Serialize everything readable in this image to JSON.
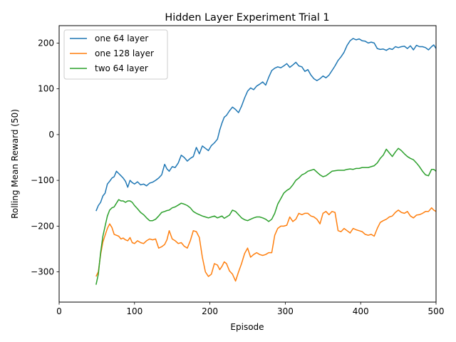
{
  "chart_data": {
    "type": "line",
    "title": "Hidden Layer Experiment Trial 1",
    "xlabel": "Episode",
    "ylabel": "Rolling Mean Reward (50)",
    "xlim": [
      0,
      500
    ],
    "ylim": [
      -366,
      238
    ],
    "xticks": [
      0,
      100,
      200,
      300,
      400,
      500
    ],
    "yticks": [
      -300,
      -200,
      -100,
      0,
      100,
      200
    ],
    "xtick_labels": [
      "0",
      "100",
      "200",
      "300",
      "400",
      "500"
    ],
    "ytick_labels": [
      "−300",
      "−200",
      "−100",
      "0",
      "100",
      "200"
    ],
    "grid": false,
    "legend_position": "upper-left",
    "series": [
      {
        "name": "one 64 layer",
        "color": "#1f77b4",
        "x": [
          49,
          52,
          55,
          58,
          61,
          64,
          67,
          70,
          73,
          76,
          79,
          82,
          85,
          88,
          91,
          94,
          97,
          100,
          104,
          108,
          112,
          116,
          120,
          124,
          128,
          132,
          136,
          140,
          143,
          146,
          150,
          154,
          158,
          162,
          166,
          170,
          174,
          178,
          182,
          186,
          190,
          194,
          198,
          202,
          206,
          210,
          213,
          216,
          219,
          222,
          226,
          230,
          234,
          238,
          242,
          246,
          250,
          254,
          258,
          262,
          266,
          270,
          274,
          278,
          282,
          286,
          290,
          294,
          298,
          302,
          306,
          310,
          314,
          318,
          322,
          326,
          330,
          334,
          338,
          342,
          346,
          350,
          354,
          358,
          362,
          366,
          370,
          374,
          378,
          382,
          386,
          390,
          394,
          398,
          402,
          406,
          410,
          414,
          418,
          422,
          426,
          430,
          434,
          438,
          442,
          446,
          450,
          454,
          458,
          462,
          466,
          470,
          474,
          478,
          482,
          486,
          490,
          494,
          497,
          500
        ],
        "y": [
          -167,
          -155,
          -148,
          -134,
          -128,
          -108,
          -102,
          -95,
          -92,
          -80,
          -85,
          -90,
          -95,
          -102,
          -115,
          -100,
          -105,
          -108,
          -103,
          -110,
          -108,
          -112,
          -106,
          -104,
          -100,
          -95,
          -88,
          -65,
          -75,
          -80,
          -70,
          -72,
          -62,
          -45,
          -50,
          -58,
          -52,
          -48,
          -28,
          -42,
          -25,
          -30,
          -35,
          -24,
          -18,
          -10,
          10,
          25,
          38,
          42,
          52,
          60,
          55,
          48,
          62,
          80,
          95,
          102,
          98,
          106,
          110,
          115,
          108,
          125,
          140,
          145,
          148,
          146,
          150,
          155,
          147,
          152,
          158,
          150,
          148,
          138,
          142,
          130,
          122,
          118,
          122,
          128,
          124,
          130,
          140,
          150,
          162,
          170,
          180,
          195,
          205,
          210,
          207,
          209,
          205,
          204,
          200,
          202,
          200,
          188,
          186,
          187,
          184,
          188,
          186,
          192,
          190,
          192,
          193,
          188,
          194,
          185,
          195,
          192,
          192,
          190,
          185,
          192,
          196,
          188
        ]
      },
      {
        "name": "one 128 layer",
        "color": "#ff7f0e",
        "x": [
          49,
          52,
          55,
          58,
          61,
          64,
          67,
          70,
          73,
          76,
          79,
          82,
          85,
          88,
          91,
          94,
          97,
          100,
          104,
          108,
          112,
          116,
          120,
          124,
          128,
          132,
          136,
          140,
          143,
          146,
          150,
          154,
          158,
          162,
          166,
          170,
          174,
          178,
          182,
          186,
          190,
          194,
          198,
          202,
          206,
          210,
          213,
          216,
          219,
          222,
          226,
          230,
          234,
          238,
          242,
          246,
          250,
          254,
          258,
          262,
          266,
          270,
          274,
          278,
          282,
          286,
          290,
          294,
          298,
          302,
          306,
          310,
          314,
          318,
          322,
          326,
          330,
          334,
          338,
          342,
          346,
          350,
          354,
          358,
          362,
          366,
          370,
          374,
          378,
          382,
          386,
          390,
          394,
          398,
          402,
          406,
          410,
          414,
          418,
          422,
          426,
          430,
          434,
          438,
          442,
          446,
          450,
          454,
          458,
          462,
          466,
          470,
          474,
          478,
          482,
          486,
          490,
          494,
          497,
          500
        ],
        "y": [
          -310,
          -300,
          -262,
          -235,
          -220,
          -205,
          -195,
          -203,
          -218,
          -220,
          -222,
          -228,
          -226,
          -230,
          -232,
          -225,
          -236,
          -238,
          -232,
          -236,
          -238,
          -232,
          -228,
          -230,
          -228,
          -248,
          -245,
          -240,
          -230,
          -210,
          -228,
          -232,
          -238,
          -236,
          -244,
          -248,
          -232,
          -210,
          -212,
          -225,
          -268,
          -300,
          -310,
          -305,
          -282,
          -285,
          -295,
          -288,
          -278,
          -282,
          -298,
          -305,
          -320,
          -300,
          -282,
          -260,
          -248,
          -268,
          -262,
          -258,
          -262,
          -264,
          -262,
          -258,
          -258,
          -220,
          -205,
          -200,
          -200,
          -198,
          -180,
          -190,
          -185,
          -172,
          -175,
          -172,
          -172,
          -178,
          -180,
          -185,
          -195,
          -172,
          -168,
          -175,
          -168,
          -170,
          -210,
          -212,
          -205,
          -210,
          -215,
          -205,
          -208,
          -210,
          -212,
          -218,
          -220,
          -218,
          -222,
          -205,
          -192,
          -188,
          -185,
          -180,
          -178,
          -170,
          -165,
          -170,
          -172,
          -168,
          -178,
          -182,
          -176,
          -175,
          -172,
          -168,
          -168,
          -160,
          -165,
          -168
        ]
      },
      {
        "name": "two 64 layer",
        "color": "#2ca02c",
        "x": [
          49,
          52,
          55,
          58,
          61,
          64,
          67,
          70,
          73,
          76,
          79,
          82,
          85,
          88,
          91,
          94,
          97,
          100,
          104,
          108,
          112,
          116,
          120,
          124,
          128,
          132,
          136,
          140,
          143,
          146,
          150,
          154,
          158,
          162,
          166,
          170,
          174,
          178,
          182,
          186,
          190,
          194,
          198,
          202,
          206,
          210,
          213,
          216,
          219,
          222,
          226,
          230,
          234,
          238,
          242,
          246,
          250,
          254,
          258,
          262,
          266,
          270,
          274,
          278,
          282,
          286,
          290,
          294,
          298,
          302,
          306,
          310,
          314,
          318,
          322,
          326,
          330,
          334,
          338,
          342,
          346,
          350,
          354,
          358,
          362,
          366,
          370,
          374,
          378,
          382,
          386,
          390,
          394,
          398,
          402,
          406,
          410,
          414,
          418,
          422,
          426,
          430,
          434,
          438,
          442,
          446,
          450,
          454,
          458,
          462,
          466,
          470,
          474,
          478,
          482,
          486,
          490,
          494,
          497,
          500
        ],
        "y": [
          -328,
          -305,
          -258,
          -222,
          -200,
          -178,
          -165,
          -160,
          -158,
          -150,
          -142,
          -145,
          -145,
          -148,
          -145,
          -145,
          -148,
          -155,
          -162,
          -170,
          -175,
          -182,
          -188,
          -188,
          -185,
          -178,
          -170,
          -168,
          -166,
          -165,
          -160,
          -158,
          -154,
          -150,
          -152,
          -155,
          -160,
          -168,
          -172,
          -175,
          -178,
          -180,
          -182,
          -180,
          -178,
          -182,
          -180,
          -178,
          -183,
          -180,
          -176,
          -165,
          -168,
          -175,
          -182,
          -186,
          -188,
          -185,
          -182,
          -180,
          -180,
          -182,
          -185,
          -190,
          -185,
          -172,
          -152,
          -140,
          -128,
          -122,
          -118,
          -110,
          -100,
          -95,
          -88,
          -85,
          -80,
          -78,
          -76,
          -82,
          -88,
          -92,
          -90,
          -85,
          -80,
          -79,
          -78,
          -78,
          -78,
          -76,
          -75,
          -76,
          -74,
          -74,
          -72,
          -72,
          -72,
          -70,
          -68,
          -62,
          -52,
          -45,
          -32,
          -40,
          -48,
          -38,
          -30,
          -35,
          -42,
          -48,
          -52,
          -55,
          -62,
          -70,
          -80,
          -88,
          -90,
          -76,
          -76,
          -80
        ]
      }
    ]
  }
}
